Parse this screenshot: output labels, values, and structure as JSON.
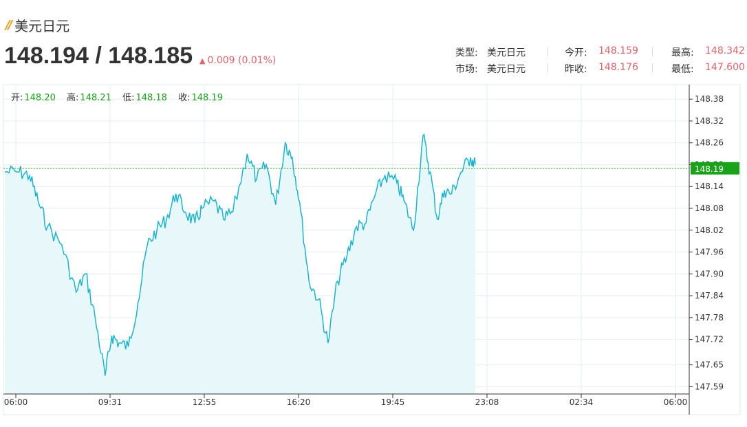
{
  "header": {
    "title": "美元日元",
    "price": "148.194 / 148.185",
    "change": "0.009 (0.01%)"
  },
  "info": {
    "type_label": "类型:",
    "type_value": "美元日元",
    "market_label": "市场:",
    "market_value": "美元日元",
    "open_label": "今开:",
    "open_value": "148.159",
    "prev_close_label": "昨收:",
    "prev_close_value": "148.176",
    "high_label": "最高:",
    "high_value": "148.342",
    "low_label": "最低:",
    "low_value": "147.600"
  },
  "ohlc": {
    "open_label": "开:",
    "open_value": "148.20",
    "high_label": "高:",
    "high_value": "148.21",
    "low_label": "低:",
    "low_value": "148.18",
    "close_label": "收:",
    "close_value": "148.19"
  },
  "colors": {
    "line": "#1ab4cf",
    "fill": "#e8f8fa",
    "up": "#e0636b",
    "green": "#1aa31a",
    "grid": "#e6eef0"
  },
  "chart_data": {
    "type": "area",
    "ylim": [
      147.57,
      148.42
    ],
    "y_ticks": [
      148.38,
      148.32,
      148.26,
      148.2,
      148.14,
      148.08,
      148.02,
      147.96,
      147.9,
      147.84,
      147.78,
      147.72,
      147.65,
      147.59
    ],
    "x_ticks": [
      "06:00",
      "09:31",
      "12:55",
      "16:20",
      "19:45",
      "23:08",
      "02:34",
      "06:00"
    ],
    "current_value": "148.19",
    "x": [
      "06:00",
      "06:30",
      "06:52",
      "07:10",
      "07:30",
      "08:00",
      "08:30",
      "08:50",
      "09:10",
      "09:31",
      "09:45",
      "10:00",
      "10:20",
      "10:40",
      "11:00",
      "11:20",
      "11:40",
      "12:00",
      "12:20",
      "12:40",
      "12:55",
      "13:20",
      "13:40",
      "14:00",
      "14:30",
      "14:50",
      "15:10",
      "15:30",
      "15:50",
      "16:05",
      "16:20",
      "16:40",
      "17:00",
      "17:20",
      "17:40",
      "18:00",
      "18:20",
      "18:40",
      "19:00",
      "19:20",
      "19:45",
      "20:00",
      "20:20",
      "20:40",
      "20:55",
      "21:10",
      "21:25",
      "21:40",
      "22:00",
      "22:20",
      "22:30"
    ],
    "values": [
      148.18,
      148.18,
      148.17,
      148.1,
      148.03,
      147.98,
      147.85,
      147.9,
      147.78,
      147.62,
      147.73,
      147.71,
      147.7,
      147.82,
      147.98,
      148.02,
      148.05,
      148.12,
      148.07,
      148.04,
      148.08,
      148.1,
      148.05,
      148.07,
      148.23,
      148.16,
      148.2,
      148.09,
      148.26,
      148.22,
      148.1,
      147.88,
      147.83,
      147.71,
      147.88,
      147.95,
      148.03,
      148.04,
      148.12,
      148.17,
      148.15,
      148.1,
      148.02,
      148.28,
      148.18,
      148.05,
      148.13,
      148.12,
      148.18,
      148.22,
      148.2
    ]
  }
}
